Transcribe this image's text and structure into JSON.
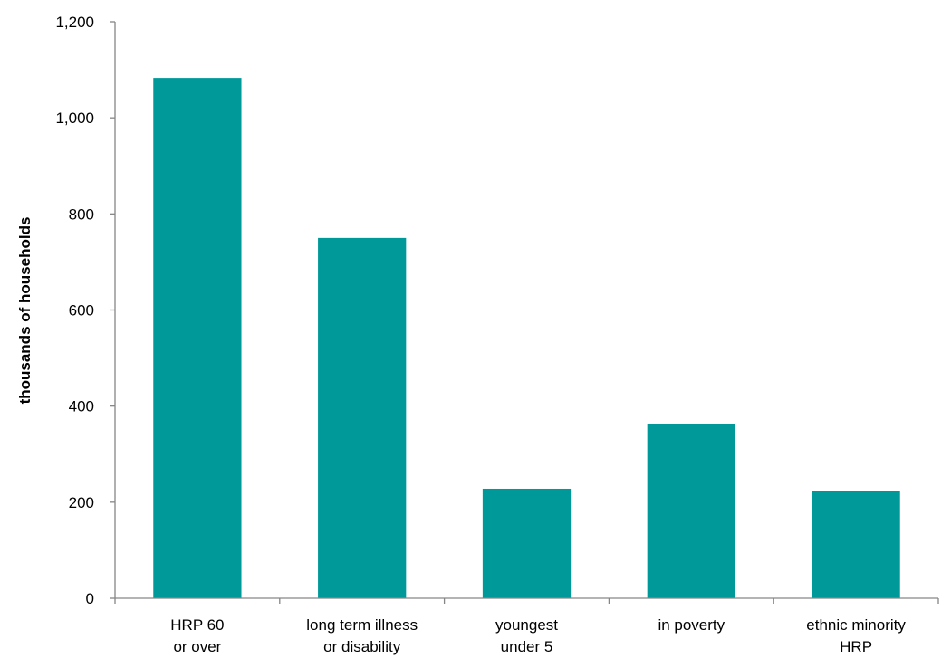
{
  "chart_data": {
    "type": "bar",
    "title": "",
    "xlabel": "",
    "ylabel": "thousands of households",
    "ylim": [
      0,
      1200
    ],
    "yticks": [
      0,
      200,
      400,
      600,
      800,
      1000,
      1200
    ],
    "ytick_labels": [
      "0",
      "200",
      "400",
      "600",
      "800",
      "1,000",
      "1,200"
    ],
    "grid": false,
    "legend": "none",
    "bar_color": "#009999",
    "categories": [
      [
        "HRP 60",
        "or over"
      ],
      [
        "long term illness",
        "or disability"
      ],
      [
        "youngest",
        "under 5"
      ],
      [
        "in poverty"
      ],
      [
        "ethnic minority",
        "HRP"
      ]
    ],
    "values": [
      1083,
      750,
      228,
      363,
      224
    ]
  }
}
